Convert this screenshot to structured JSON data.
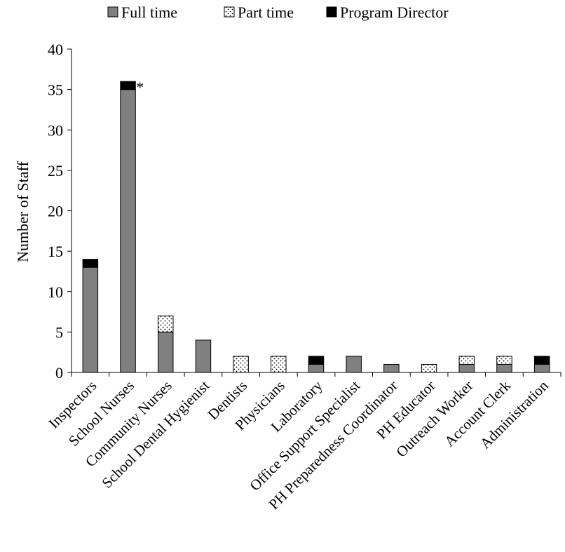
{
  "chart_data": {
    "type": "bar",
    "stacked": true,
    "ylabel": "Number of Staff",
    "ylim": [
      0,
      40
    ],
    "yticks": [
      0,
      5,
      10,
      15,
      20,
      25,
      30,
      35,
      40
    ],
    "grid": false,
    "legend_position": "top",
    "categories": [
      "Inspectors",
      "School Nurses",
      "Community Nurses",
      "School Dental Hygienist",
      "Dentists",
      "Physicians",
      "Laboratory",
      "Office Support Specialist",
      "PH Preparedness Coordinator",
      "PH Educator",
      "Outreach Worker",
      "Account Clerk",
      "Administration"
    ],
    "series": [
      {
        "name": "Full time",
        "color": "#808080",
        "pattern": "solid",
        "values": [
          13,
          35,
          5,
          4,
          0,
          0,
          1,
          2,
          1,
          0,
          1,
          1,
          1
        ]
      },
      {
        "name": "Part time",
        "color": "#ffffff",
        "pattern": "dots",
        "values": [
          0,
          0,
          2,
          0,
          2,
          2,
          0,
          0,
          0,
          1,
          1,
          1,
          0
        ]
      },
      {
        "name": "Program Director",
        "color": "#000000",
        "pattern": "solid",
        "values": [
          1,
          1,
          0,
          0,
          0,
          0,
          1,
          0,
          0,
          0,
          0,
          0,
          1
        ]
      }
    ],
    "annotations": [
      {
        "category": "School Nurses",
        "text": "*"
      }
    ]
  }
}
